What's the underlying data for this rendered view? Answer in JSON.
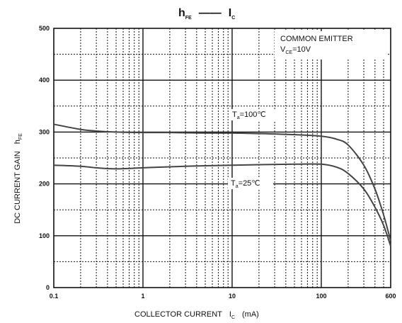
{
  "chart_data": {
    "type": "line",
    "title": {
      "main": "h",
      "main_sub": "FE",
      "dash": "——",
      "second": "I",
      "second_sub": "C"
    },
    "xlabel": {
      "main": "COLLECTOR CURRENT",
      "symbol": "I",
      "symbol_sub": "C",
      "unit": "(mA)"
    },
    "ylabel": {
      "main": "DC CURRENT GAIN",
      "symbol": "h",
      "symbol_sub": "FE"
    },
    "xscale": "log",
    "xlim": [
      0.1,
      600
    ],
    "ylim": [
      0,
      500
    ],
    "grid": true,
    "x_tick_labels": [
      {
        "value": 0.1,
        "label": "0.1"
      },
      {
        "value": 1,
        "label": "1"
      },
      {
        "value": 10,
        "label": "10"
      },
      {
        "value": 100,
        "label": "100"
      },
      {
        "value": 600,
        "label": "600"
      }
    ],
    "y_tick_labels": [
      {
        "value": 0,
        "label": "0"
      },
      {
        "value": 100,
        "label": "100"
      },
      {
        "value": 200,
        "label": "200"
      },
      {
        "value": 300,
        "label": "300"
      },
      {
        "value": 400,
        "label": "400"
      },
      {
        "value": 500,
        "label": "500"
      }
    ],
    "annotations": {
      "condition_line1": "COMMON EMITTER",
      "condition_line2": {
        "main": "V",
        "sub": "CE",
        "rest": "=10V"
      },
      "series1_label": {
        "main": "T",
        "sub": "a",
        "rest": "=100℃"
      },
      "series2_label": {
        "main": "T",
        "sub": "a",
        "rest": "=25℃"
      }
    },
    "series": [
      {
        "name": "Ta=100℃",
        "x": [
          0.1,
          0.2,
          0.3,
          0.5,
          1,
          2,
          5,
          10,
          20,
          50,
          100,
          150,
          200,
          300,
          400,
          500,
          600
        ],
        "y": [
          315,
          305,
          302,
          300,
          299,
          299,
          298,
          298,
          297,
          295,
          292,
          286,
          275,
          236,
          190,
          140,
          90
        ]
      },
      {
        "name": "Ta=25℃",
        "x": [
          0.1,
          0.2,
          0.3,
          0.5,
          1,
          2,
          5,
          10,
          20,
          50,
          100,
          150,
          200,
          300,
          400,
          500,
          600
        ],
        "y": [
          236,
          234,
          231,
          229,
          231,
          233,
          235,
          236,
          237,
          238,
          238,
          232,
          220,
          190,
          155,
          120,
          80
        ]
      }
    ]
  }
}
